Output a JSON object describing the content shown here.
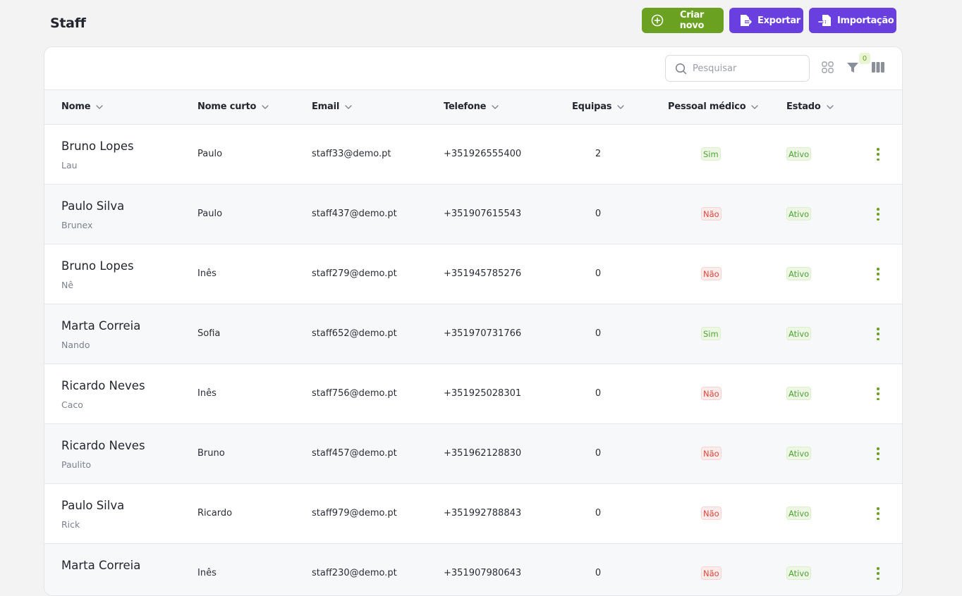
{
  "page": {
    "title": "Staff"
  },
  "actions": {
    "create_label": "Criar novo",
    "export_label": "Exportar",
    "import_label": "Importação"
  },
  "toolbar": {
    "search_placeholder": "Pesquisar",
    "filter_count": "0"
  },
  "table": {
    "columns": [
      "Nome",
      "Nome curto",
      "Email",
      "Telefone",
      "Equipas",
      "Pessoal médico",
      "Estado"
    ],
    "rows": [
      {
        "name": "Bruno Lopes",
        "nickname": "Lau",
        "short_name": "Paulo",
        "email": "staff33@demo.pt",
        "phone": "+351926555400",
        "teams": "2",
        "medical": "Sim",
        "status": "Ativo"
      },
      {
        "name": "Paulo Silva",
        "nickname": "Brunex",
        "short_name": "Paulo",
        "email": "staff437@demo.pt",
        "phone": "+351907615543",
        "teams": "0",
        "medical": "Não",
        "status": "Ativo"
      },
      {
        "name": "Bruno Lopes",
        "nickname": "Nê",
        "short_name": "Inês",
        "email": "staff279@demo.pt",
        "phone": "+351945785276",
        "teams": "0",
        "medical": "Não",
        "status": "Ativo"
      },
      {
        "name": "Marta Correia",
        "nickname": "Nando",
        "short_name": "Sofia",
        "email": "staff652@demo.pt",
        "phone": "+351970731766",
        "teams": "0",
        "medical": "Sim",
        "status": "Ativo"
      },
      {
        "name": "Ricardo Neves",
        "nickname": "Caco",
        "short_name": "Inês",
        "email": "staff756@demo.pt",
        "phone": "+351925028301",
        "teams": "0",
        "medical": "Não",
        "status": "Ativo"
      },
      {
        "name": "Ricardo Neves",
        "nickname": "Paulito",
        "short_name": "Bruno",
        "email": "staff457@demo.pt",
        "phone": "+351962128830",
        "teams": "0",
        "medical": "Não",
        "status": "Ativo"
      },
      {
        "name": "Paulo Silva",
        "nickname": "Rick",
        "short_name": "Ricardo",
        "email": "staff979@demo.pt",
        "phone": "+351992788843",
        "teams": "0",
        "medical": "Não",
        "status": "Ativo"
      },
      {
        "name": "Marta Correia",
        "nickname": "",
        "short_name": "Inês",
        "email": "staff230@demo.pt",
        "phone": "+351907980643",
        "teams": "0",
        "medical": "Não",
        "status": "Ativo"
      }
    ]
  },
  "icons": {
    "create": "plus-circle-icon",
    "export": "file-export-icon",
    "import": "file-import-icon",
    "search": "search-icon",
    "grid": "grid-view-icon",
    "filter": "filter-icon",
    "columns": "columns-icon",
    "sort": "chevron-down-icon",
    "row_menu": "kebab-menu-icon"
  },
  "colors": {
    "accent_green": "#6aa121",
    "accent_purple": "#6a3fe0",
    "yes": "#4ea33a",
    "no": "#e0443a"
  }
}
